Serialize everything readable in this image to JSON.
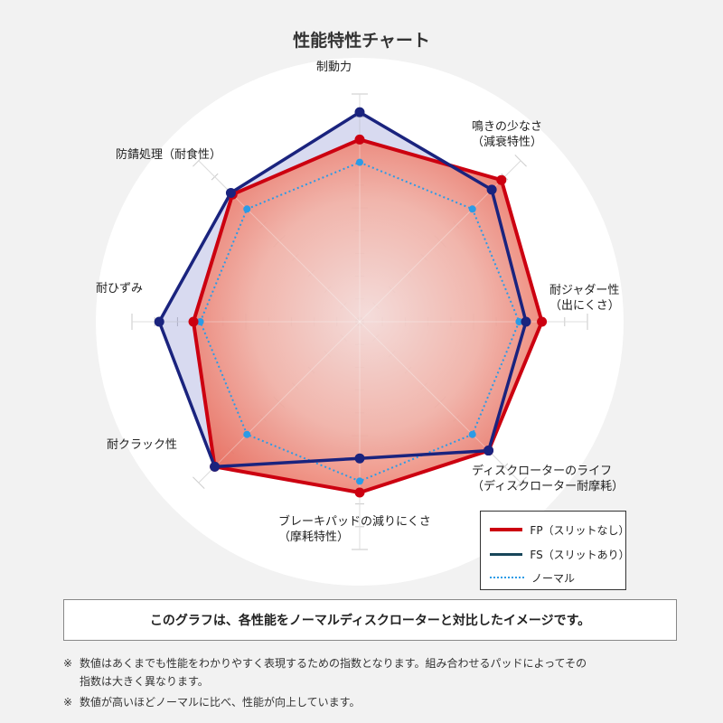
{
  "chart_data": {
    "type": "radar",
    "title": "性能特性チャート",
    "axes": [
      {
        "label": [
          "制動力"
        ]
      },
      {
        "label": [
          "鳴きの少なさ",
          "（減衰特性）"
        ]
      },
      {
        "label": [
          "耐ジャダー性",
          "（出にくさ）"
        ]
      },
      {
        "label": [
          "ディスクローターのライフ",
          "（ディスクローター耐摩耗）"
        ]
      },
      {
        "label": [
          "ブレーキパッドの減りにくさ",
          "（摩耗特性）"
        ]
      },
      {
        "label": [
          "耐クラック性"
        ]
      },
      {
        "label": [
          "耐ひずみ"
        ]
      },
      {
        "label": [
          "防錆処理（耐食性）"
        ]
      }
    ],
    "scale": {
      "min": 0,
      "max": 10
    },
    "series": [
      {
        "name": "FP（スリットなし）",
        "color": "#cc0010",
        "style": "solid-filled",
        "values": [
          8.0,
          8.8,
          8.0,
          8.0,
          7.5,
          9.0,
          7.3,
          7.9
        ]
      },
      {
        "name": "FS（スリットあり）",
        "color": "#1a237e",
        "style": "solid",
        "values": [
          9.2,
          8.2,
          7.3,
          8.0,
          6.0,
          9.0,
          8.8,
          8.0
        ]
      },
      {
        "name": "ノーマル",
        "color": "#2b9be6",
        "style": "dotted",
        "values": [
          7.0,
          7.0,
          7.0,
          7.0,
          7.0,
          7.0,
          7.0,
          7.0
        ]
      }
    ]
  },
  "note_box": "このグラフは、各性能をノーマルディスクローターと対比したイメージです。",
  "footnotes": {
    "mark": "※",
    "line1": "数値はあくまでも性能をわかりやすく表現するための指数となります。組み合わせるパッドによってその",
    "line1b": "指数は大きく異なります。",
    "line2": "数値が高いほどノーマルに比べ、性能が向上しています。"
  }
}
